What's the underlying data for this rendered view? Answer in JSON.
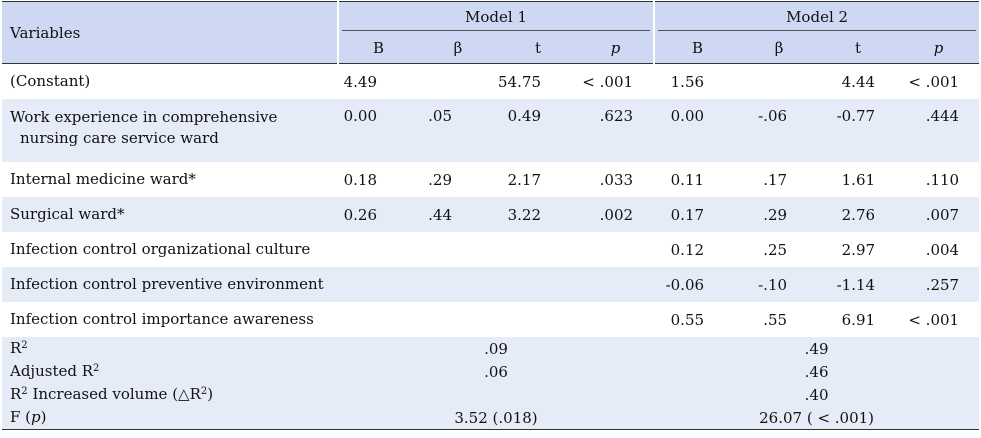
{
  "table": {
    "header": {
      "variables_label": "Variables",
      "model1_label": "Model 1",
      "model2_label": "Model 2",
      "col_B": "B",
      "col_beta": "β",
      "col_t": "t",
      "col_p": "p"
    },
    "rows": [
      {
        "label": "(Constant)",
        "label2": "",
        "m1": {
          "B": "4.49",
          "beta": "",
          "t": "54.75",
          "p": "< .001"
        },
        "m2": {
          "B": "1.56",
          "beta": "",
          "t": "4.44",
          "p": "< .001"
        }
      },
      {
        "label": "Work experience in comprehensive",
        "label2": "nursing care service ward",
        "m1": {
          "B": "0.00",
          "beta": ".05",
          "t": "0.49",
          "p": ".623"
        },
        "m2": {
          "B": "0.00",
          "beta": "-.06",
          "t": "-0.77",
          "p": ".444"
        }
      },
      {
        "label": "Internal medicine ward*",
        "label2": "",
        "m1": {
          "B": "0.18",
          "beta": ".29",
          "t": "2.17",
          "p": ".033"
        },
        "m2": {
          "B": "0.11",
          "beta": ".17",
          "t": "1.61",
          "p": ".110"
        }
      },
      {
        "label": "Surgical ward*",
        "label2": "",
        "m1": {
          "B": "0.26",
          "beta": ".44",
          "t": "3.22",
          "p": ".002"
        },
        "m2": {
          "B": "0.17",
          "beta": ".29",
          "t": "2.76",
          "p": ".007"
        }
      },
      {
        "label": "Infection control organizational culture",
        "label2": "",
        "m1": {
          "B": "",
          "beta": "",
          "t": "",
          "p": ""
        },
        "m2": {
          "B": "0.12",
          "beta": ".25",
          "t": "2.97",
          "p": ".004"
        }
      },
      {
        "label": "Infection control preventive environment",
        "label2": "",
        "m1": {
          "B": "",
          "beta": "",
          "t": "",
          "p": ""
        },
        "m2": {
          "B": "-0.06",
          "beta": "-.10",
          "t": "-1.14",
          "p": ".257"
        }
      },
      {
        "label": "Infection control importance awareness",
        "label2": "",
        "m1": {
          "B": "",
          "beta": "",
          "t": "",
          "p": ""
        },
        "m2": {
          "B": "0.55",
          "beta": ".55",
          "t": "6.91",
          "p": "< .001"
        }
      }
    ],
    "stats": {
      "r2_label": "R",
      "r2_sup": "2",
      "r2_m1": ".09",
      "r2_m2": ".49",
      "adj_label": "Adjusted R",
      "adj_sup": "2",
      "adj_m1": ".06",
      "adj_m2": ".46",
      "inc_label_a": "R",
      "inc_sup_a": "2",
      "inc_label_b": " Increased volume (△R",
      "inc_sup_b": "2",
      "inc_label_c": ")",
      "inc_m1": "",
      "inc_m2": ".40",
      "f_label_a": "F (",
      "f_label_p": "p",
      "f_label_c": ")",
      "f_m1": "3.52 (.018)",
      "f_m2": "26.07 ( < .001)"
    }
  }
}
